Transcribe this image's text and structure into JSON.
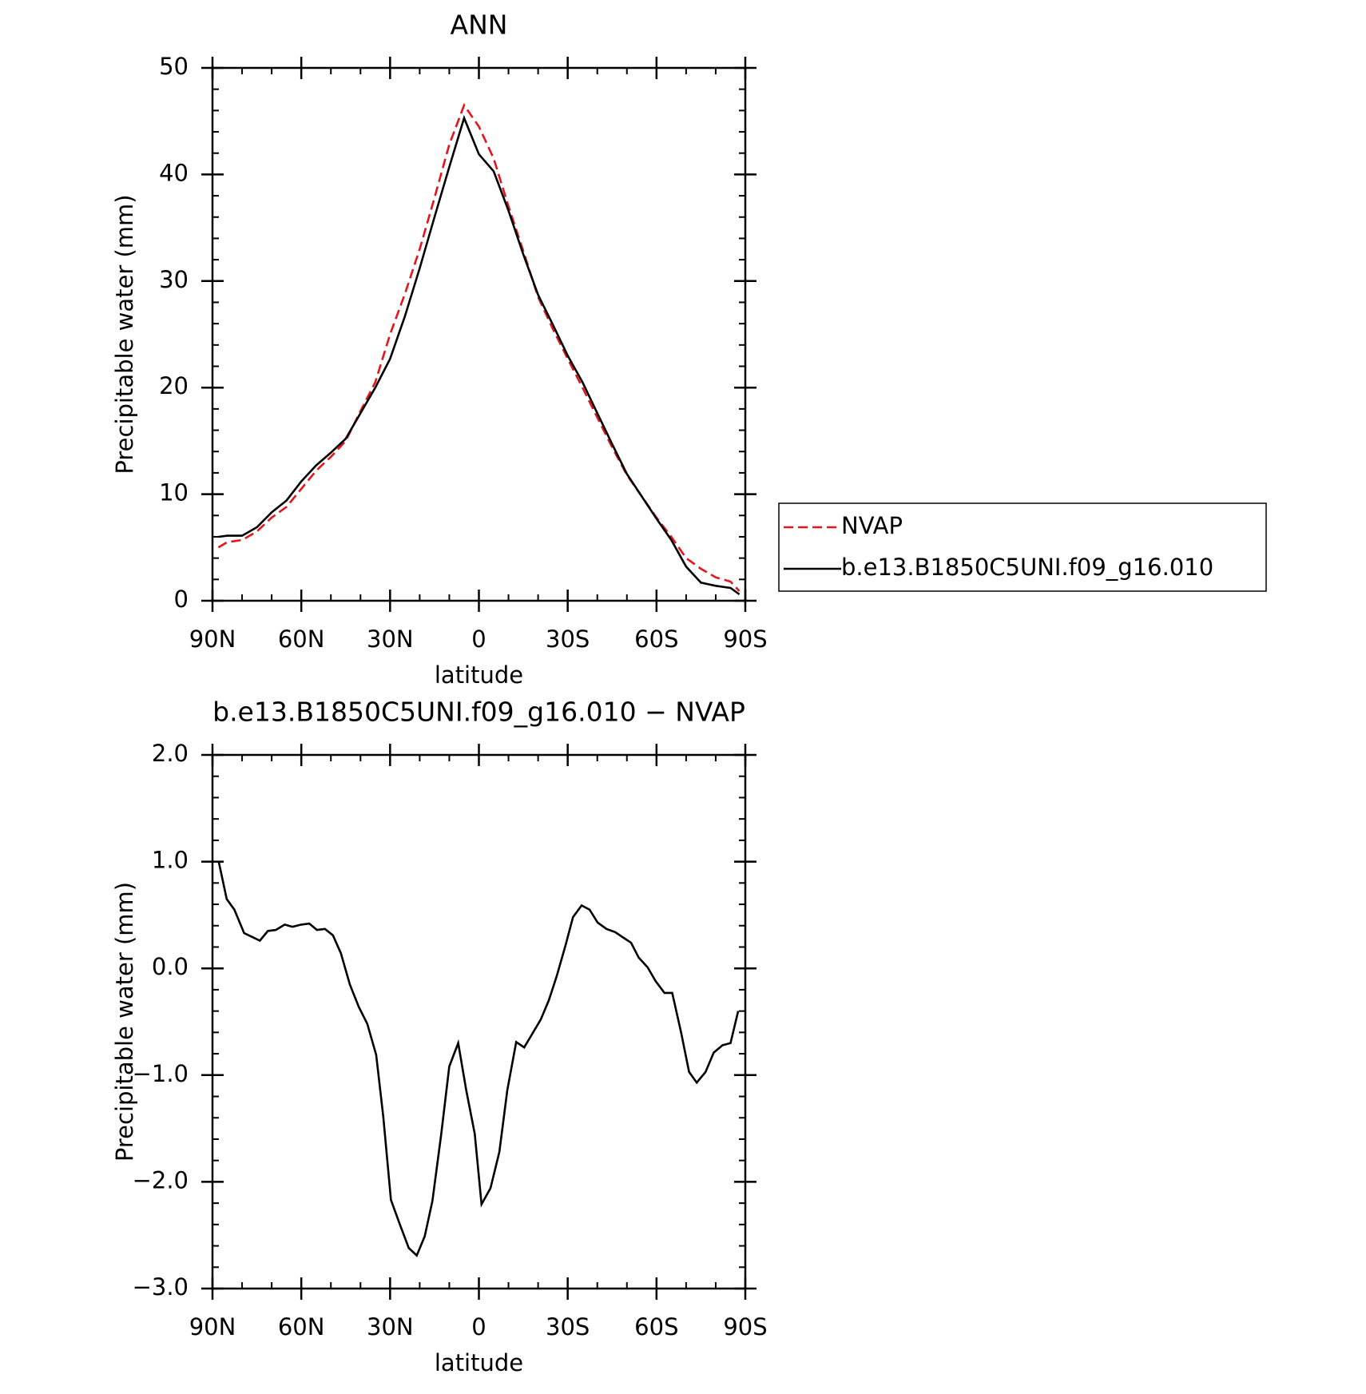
{
  "chart_data": [
    {
      "type": "line",
      "title": "ANN",
      "xlabel": "latitude",
      "ylabel": "Precipitable water (mm)",
      "x": [
        88,
        85,
        80,
        75,
        70,
        65,
        60,
        55,
        50,
        45,
        40,
        35,
        30,
        25,
        20,
        15,
        10,
        5,
        0,
        -5,
        -10,
        -15,
        -20,
        -25,
        -30,
        -35,
        -40,
        -45,
        -50,
        -55,
        -60,
        -65,
        -70,
        -75,
        -80,
        -85,
        -88
      ],
      "series": [
        {
          "name": "NVAP",
          "color": "#e8141c",
          "dash": true,
          "values": [
            5.0,
            5.5,
            5.7,
            6.5,
            7.8,
            8.8,
            10.5,
            12.2,
            13.5,
            15.0,
            17.8,
            20.5,
            25.0,
            28.8,
            33.0,
            37.8,
            42.8,
            46.5,
            44.5,
            41.5,
            37.0,
            32.8,
            28.5,
            25.5,
            22.7,
            20.0,
            17.2,
            14.4,
            11.8,
            9.8,
            7.8,
            6.0,
            4.0,
            3.0,
            2.2,
            1.8,
            0.9
          ]
        },
        {
          "name": "b.e13.B1850C5UNI.f09_g16.010",
          "color": "#000000",
          "dash": false,
          "values": [
            6.0,
            6.1,
            6.1,
            6.9,
            8.3,
            9.4,
            11.2,
            12.7,
            13.9,
            15.2,
            17.6,
            20.0,
            22.7,
            26.7,
            31.2,
            36.0,
            40.7,
            45.3,
            41.9,
            40.3,
            36.6,
            32.5,
            28.7,
            25.9,
            23.0,
            20.5,
            17.6,
            14.7,
            11.9,
            9.8,
            7.7,
            5.7,
            3.2,
            1.7,
            1.4,
            1.2,
            0.6
          ]
        }
      ],
      "xlim": [
        90,
        -90
      ],
      "xticks": [
        {
          "value": 90,
          "label": "90N"
        },
        {
          "value": 60,
          "label": "60N"
        },
        {
          "value": 30,
          "label": "30N"
        },
        0,
        {
          "value": -30,
          "label": "30S"
        },
        {
          "value": -60,
          "label": "60S"
        },
        {
          "value": -90,
          "label": "90S"
        }
      ],
      "ylim": [
        0,
        50
      ],
      "yticks": [
        0,
        10,
        20,
        30,
        40,
        50
      ],
      "legend": "outside right"
    },
    {
      "type": "line",
      "title": "b.e13.B1850C5UNI.f09_g16.010 − NVAP",
      "xlabel": "latitude",
      "ylabel": "Precipitable water (mm)",
      "x": [
        87.9,
        85.2,
        82.6,
        79.3,
        74.0,
        71.3,
        68.6,
        65.6,
        63.0,
        60.0,
        57.3,
        54.7,
        52.0,
        49.3,
        46.6,
        43.6,
        40.6,
        37.7,
        34.7,
        32.3,
        29.7,
        26.7,
        23.7,
        21.0,
        18.3,
        15.7,
        12.7,
        10.0,
        7.0,
        4.3,
        1.4,
        -0.9,
        -3.9,
        -6.9,
        -9.6,
        -12.6,
        -15.3,
        -17.9,
        -20.9,
        -23.6,
        -26.3,
        -29.3,
        -31.8,
        -34.7,
        -37.4,
        -40.1,
        -43.1,
        -46.0,
        -48.7,
        -51.4,
        -54.0,
        -57.0,
        -59.7,
        -62.7,
        -65.3,
        -68.3,
        -71.0,
        -73.6,
        -76.6,
        -79.3,
        -82.3,
        -85.0,
        -87.6
      ],
      "series": [
        {
          "name": "b.e13.B1850C5UNI.f09_g16.010 − NVAP",
          "color": "#000000",
          "dash": false,
          "values": [
            1.0,
            0.65,
            0.55,
            0.33,
            0.26,
            0.35,
            0.36,
            0.41,
            0.39,
            0.41,
            0.42,
            0.36,
            0.37,
            0.31,
            0.14,
            -0.15,
            -0.36,
            -0.52,
            -0.81,
            -1.39,
            -2.17,
            -2.4,
            -2.62,
            -2.69,
            -2.51,
            -2.18,
            -1.55,
            -0.92,
            -0.7,
            -1.14,
            -1.55,
            -2.21,
            -2.06,
            -1.72,
            -1.14,
            -0.69,
            -0.74,
            -0.62,
            -0.48,
            -0.3,
            -0.07,
            0.22,
            0.48,
            0.59,
            0.55,
            0.43,
            0.37,
            0.34,
            0.29,
            0.24,
            0.1,
            0.01,
            -0.12,
            -0.23,
            -0.23,
            -0.6,
            -0.97,
            -1.07,
            -0.97,
            -0.79,
            -0.72,
            -0.7,
            -0.4
          ]
        }
      ],
      "xlim": [
        90,
        -90
      ],
      "xticks": [
        {
          "value": 90,
          "label": "90N"
        },
        {
          "value": 60,
          "label": "60N"
        },
        {
          "value": 30,
          "label": "30N"
        },
        0,
        {
          "value": -30,
          "label": "30S"
        },
        {
          "value": -60,
          "label": "60S"
        },
        {
          "value": -90,
          "label": "90S"
        }
      ],
      "ylim": [
        -3,
        2
      ],
      "yticks": [
        {
          "value": 2,
          "label": "2.0"
        },
        {
          "value": 1,
          "label": "1.0"
        },
        {
          "value": 0,
          "label": "0.0"
        },
        {
          "value": -1,
          "label": "−1.0"
        },
        {
          "value": -2,
          "label": "−2.0"
        },
        {
          "value": -3,
          "label": "−3.0"
        }
      ]
    }
  ]
}
